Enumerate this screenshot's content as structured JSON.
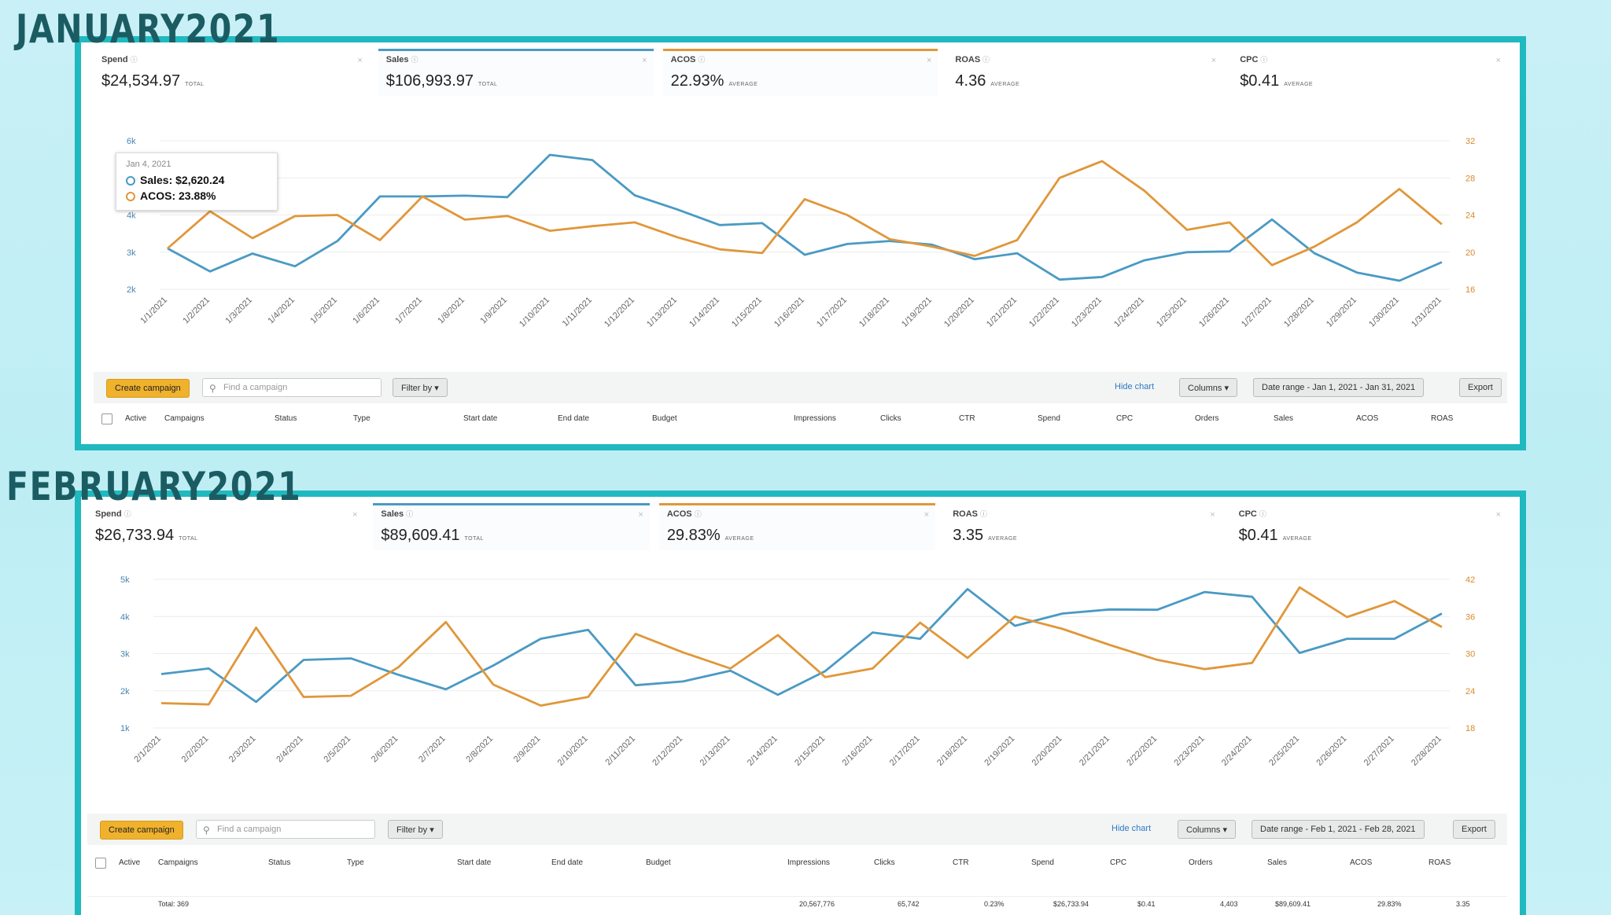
{
  "january": {
    "title": "JANUARY2021",
    "metrics": [
      {
        "label": "Spend",
        "value": "$24,534.97",
        "suffix": "TOTAL"
      },
      {
        "label": "Sales",
        "value": "$106,993.97",
        "suffix": "TOTAL",
        "selected": "blue"
      },
      {
        "label": "ACOS",
        "value": "22.93%",
        "suffix": "AVERAGE",
        "selected": "orange"
      },
      {
        "label": "ROAS",
        "value": "4.36",
        "suffix": "AVERAGE"
      },
      {
        "label": "CPC",
        "value": "$0.41",
        "suffix": "AVERAGE"
      }
    ],
    "tooltip": {
      "date": "Jan 4, 2021",
      "sales": "Sales: $2,620.24",
      "acos": "ACOS: 23.88%"
    },
    "toolbar": {
      "create": "Create campaign",
      "search_placeholder": "Find a campaign",
      "filter": "Filter by",
      "hide_chart": "Hide chart",
      "columns": "Columns",
      "date_range": "Date range - Jan 1, 2021 - Jan 31, 2021",
      "export": "Export"
    },
    "columns": [
      "Active",
      "Campaigns",
      "Status",
      "Type",
      "Start date",
      "End date",
      "Budget",
      "Impressions",
      "Clicks",
      "CTR",
      "Spend",
      "CPC",
      "Orders",
      "Sales",
      "ACOS",
      "ROAS"
    ]
  },
  "february": {
    "title": "FEBRUARY2021",
    "metrics": [
      {
        "label": "Spend",
        "value": "$26,733.94",
        "suffix": "TOTAL"
      },
      {
        "label": "Sales",
        "value": "$89,609.41",
        "suffix": "TOTAL",
        "selected": "blue"
      },
      {
        "label": "ACOS",
        "value": "29.83%",
        "suffix": "AVERAGE",
        "selected": "orange"
      },
      {
        "label": "ROAS",
        "value": "3.35",
        "suffix": "AVERAGE"
      },
      {
        "label": "CPC",
        "value": "$0.41",
        "suffix": "AVERAGE"
      }
    ],
    "toolbar": {
      "create": "Create campaign",
      "search_placeholder": "Find a campaign",
      "filter": "Filter by",
      "hide_chart": "Hide chart",
      "columns": "Columns",
      "date_range": "Date range - Feb 1, 2021 - Feb 28, 2021",
      "export": "Export"
    },
    "columns": [
      "Active",
      "Campaigns",
      "Status",
      "Type",
      "Start date",
      "End date",
      "Budget",
      "Impressions",
      "Clicks",
      "CTR",
      "Spend",
      "CPC",
      "Orders",
      "Sales",
      "ACOS",
      "ROAS"
    ],
    "total_row": [
      "Total: 369",
      "20,567,776",
      "65,742",
      "0.23%",
      "$26,733.94",
      "$0.41",
      "4,403",
      "$89,609.41",
      "29.83%",
      "3.35"
    ]
  },
  "colors": {
    "sales": "#4a9ac3",
    "acos": "#e0973a",
    "frame": "#20b9bf",
    "title": "#1b5c63"
  },
  "chart_data": [
    {
      "type": "line",
      "x": [
        "1/1/2021",
        "1/2/2021",
        "1/3/2021",
        "1/4/2021",
        "1/5/2021",
        "1/6/2021",
        "1/7/2021",
        "1/8/2021",
        "1/9/2021",
        "1/10/2021",
        "1/11/2021",
        "1/12/2021",
        "1/13/2021",
        "1/14/2021",
        "1/15/2021",
        "1/16/2021",
        "1/17/2021",
        "1/18/2021",
        "1/19/2021",
        "1/20/2021",
        "1/21/2021",
        "1/22/2021",
        "1/23/2021",
        "1/24/2021",
        "1/25/2021",
        "1/26/2021",
        "1/27/2021",
        "1/28/2021",
        "1/29/2021",
        "1/30/2021",
        "1/31/2021"
      ],
      "y_left_ticks": [
        "2k",
        "3k",
        "4k",
        "5k",
        "6k"
      ],
      "y_right_ticks": [
        "16",
        "20",
        "24",
        "28",
        "32"
      ],
      "ylim_left": [
        2000,
        6000
      ],
      "ylim_right": [
        16,
        32
      ],
      "series": [
        {
          "name": "Sales",
          "axis": "left",
          "values": [
            3100,
            2480,
            2960,
            2620,
            3300,
            4500,
            4500,
            4520,
            4480,
            5620,
            5480,
            4530,
            4150,
            3730,
            3780,
            2930,
            3220,
            3300,
            3200,
            2810,
            2970,
            2260,
            2330,
            2780,
            3000,
            3020,
            3880,
            2970,
            2450,
            2230,
            2730
          ]
        },
        {
          "name": "ACOS",
          "axis": "right",
          "values": [
            20.4,
            24.4,
            21.5,
            23.88,
            24.0,
            21.3,
            26.0,
            23.5,
            23.9,
            22.3,
            22.8,
            23.2,
            21.6,
            20.3,
            19.9,
            25.7,
            24.0,
            21.4,
            20.6,
            19.6,
            21.3,
            28.0,
            29.8,
            26.6,
            22.4,
            23.2,
            18.6,
            20.6,
            23.2,
            26.8,
            23.0
          ]
        }
      ]
    },
    {
      "type": "line",
      "x": [
        "2/1/2021",
        "2/2/2021",
        "2/3/2021",
        "2/4/2021",
        "2/5/2021",
        "2/6/2021",
        "2/7/2021",
        "2/8/2021",
        "2/9/2021",
        "2/10/2021",
        "2/11/2021",
        "2/12/2021",
        "2/13/2021",
        "2/14/2021",
        "2/15/2021",
        "2/16/2021",
        "2/17/2021",
        "2/18/2021",
        "2/19/2021",
        "2/20/2021",
        "2/21/2021",
        "2/22/2021",
        "2/23/2021",
        "2/24/2021",
        "2/25/2021",
        "2/26/2021",
        "2/27/2021",
        "2/28/2021"
      ],
      "y_left_ticks": [
        "1k",
        "2k",
        "3k",
        "4k",
        "5k"
      ],
      "y_right_ticks": [
        "18",
        "24",
        "30",
        "36",
        "42"
      ],
      "ylim_left": [
        1000,
        5000
      ],
      "ylim_right": [
        18,
        42
      ],
      "series": [
        {
          "name": "Sales",
          "axis": "left",
          "values": [
            2450,
            2600,
            1700,
            2830,
            2870,
            2430,
            2040,
            2680,
            3400,
            3640,
            2150,
            2250,
            2540,
            1890,
            2530,
            3570,
            3400,
            4740,
            3750,
            4080,
            4190,
            4180,
            4660,
            4530,
            3020,
            3400,
            3400,
            4080
          ]
        },
        {
          "name": "ACOS",
          "axis": "right",
          "values": [
            22.0,
            21.8,
            34.2,
            23.0,
            23.2,
            27.8,
            35.1,
            25.0,
            21.6,
            23.0,
            33.2,
            30.2,
            27.6,
            33.0,
            26.2,
            27.6,
            35.0,
            29.3,
            36.0,
            34.0,
            31.4,
            29.0,
            27.5,
            28.5,
            40.7,
            35.9,
            38.5,
            34.3
          ]
        }
      ]
    }
  ]
}
